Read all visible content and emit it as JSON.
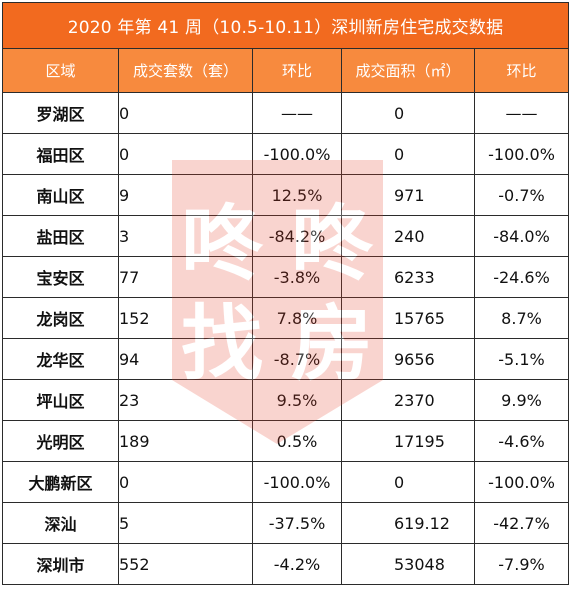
{
  "title": "2020 年第 41 周（10.5-10.11）深圳新房住宅成交数据",
  "headers": [
    "区域",
    "成交套数（套）",
    "环比",
    "成交面积（㎡）",
    "环比"
  ],
  "rows": [
    [
      "罗湖区",
      "0",
      "——",
      "0",
      "——"
    ],
    [
      "福田区",
      "0",
      "-100.0%",
      "0",
      "-100.0%"
    ],
    [
      "南山区",
      "9",
      "12.5%",
      "971",
      "-0.7%"
    ],
    [
      "盐田区",
      "3",
      "-84.2%",
      "240",
      "-84.0%"
    ],
    [
      "宝安区",
      "77",
      "-3.8%",
      "6233",
      "-24.6%"
    ],
    [
      "龙岗区",
      "152",
      "7.8%",
      "15765",
      "8.7%"
    ],
    [
      "龙华区",
      "94",
      "-8.7%",
      "9656",
      "-5.1%"
    ],
    [
      "坪山区",
      "23",
      "9.5%",
      "2370",
      "9.9%"
    ],
    [
      "光明区",
      "189",
      "0.5%",
      "17195",
      "-4.6%"
    ],
    [
      "大鹏新区",
      "0",
      "-100.0%",
      "0",
      "-100.0%"
    ],
    [
      "深汕",
      "5",
      "-37.5%",
      "619.12",
      "-42.7%"
    ],
    [
      "深圳市",
      "552",
      "-4.2%",
      "53048",
      "-7.9%"
    ]
  ],
  "watermark": {
    "text": "咚咚找房",
    "color": "#e8402a"
  }
}
